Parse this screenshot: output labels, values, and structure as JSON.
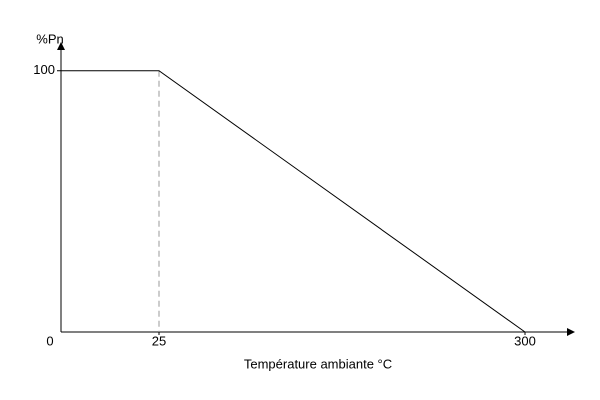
{
  "chart_data": {
    "type": "line",
    "y_label": "%Pn",
    "x_label": "Température ambiante °C",
    "x": [
      0,
      25,
      300
    ],
    "series": [
      {
        "color": "#000000",
        "values": [
          100,
          100,
          0
        ]
      }
    ],
    "xlim": [
      0,
      338
    ],
    "xticks": [
      25,
      300
    ],
    "ylim": [
      0,
      111
    ],
    "yticks": [
      0,
      100
    ],
    "grid": false
  }
}
